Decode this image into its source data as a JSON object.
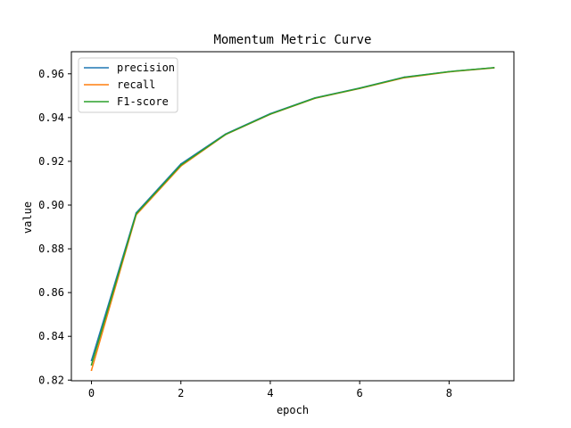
{
  "chart_data": {
    "type": "line",
    "title": "Momentum Metric Curve",
    "xlabel": "epoch",
    "ylabel": "value",
    "xlim": [
      -0.45,
      9.45
    ],
    "ylim": [
      0.8197,
      0.9701
    ],
    "xticks": [
      0,
      2,
      4,
      6,
      8
    ],
    "xtick_labels": [
      "0",
      "2",
      "4",
      "6",
      "8"
    ],
    "yticks": [
      0.82,
      0.84,
      0.86,
      0.88,
      0.9,
      0.92,
      0.94,
      0.96
    ],
    "ytick_labels": [
      "0.82",
      "0.84",
      "0.86",
      "0.88",
      "0.90",
      "0.92",
      "0.94",
      "0.96"
    ],
    "grid": false,
    "legend_position": "upper-left",
    "x": [
      0,
      1,
      2,
      3,
      4,
      5,
      6,
      7,
      8,
      9
    ],
    "series": [
      {
        "name": "precision",
        "color": "#1f77b4",
        "values": [
          0.829,
          0.8965,
          0.9188,
          0.9325,
          0.9418,
          0.949,
          0.9535,
          0.9585,
          0.961,
          0.9628
        ]
      },
      {
        "name": "recall",
        "color": "#ff7f0e",
        "values": [
          0.8245,
          0.8955,
          0.9178,
          0.9322,
          0.9415,
          0.9488,
          0.9533,
          0.9582,
          0.9609,
          0.9627
        ]
      },
      {
        "name": "F1-score",
        "color": "#2ca02c",
        "values": [
          0.827,
          0.896,
          0.9183,
          0.9323,
          0.9416,
          0.9489,
          0.9534,
          0.9584,
          0.961,
          0.9628
        ]
      }
    ]
  }
}
